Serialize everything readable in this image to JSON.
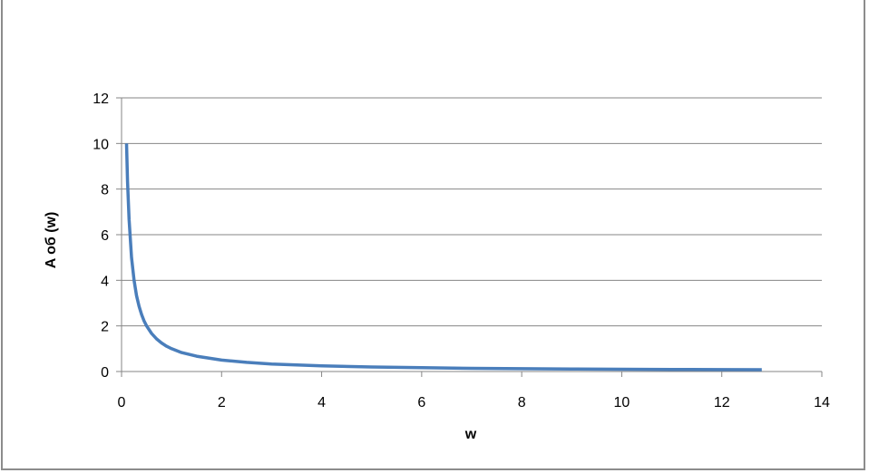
{
  "chart_data": {
    "type": "line",
    "title": "",
    "xlabel": "w",
    "ylabel": "A об (w)",
    "xlim": [
      0,
      14
    ],
    "ylim": [
      0,
      12
    ],
    "xticks": [
      "0",
      "2",
      "4",
      "6",
      "8",
      "10",
      "12",
      "14"
    ],
    "yticks": [
      "0",
      "2",
      "4",
      "6",
      "8",
      "10",
      "12"
    ],
    "grid": "horizontal",
    "legend": "none",
    "series": [
      {
        "color": "#4a7ebb",
        "x": [
          0.1,
          0.12,
          0.15,
          0.2,
          0.25,
          0.3,
          0.35,
          0.4,
          0.45,
          0.5,
          0.6,
          0.7,
          0.8,
          0.9,
          1,
          1.2,
          1.5,
          2,
          2.5,
          3,
          4,
          5,
          6,
          7,
          8,
          9,
          10,
          11,
          12,
          12.8
        ],
        "y": [
          10,
          8.33,
          6.67,
          5,
          4,
          3.33,
          2.86,
          2.5,
          2.22,
          2,
          1.67,
          1.43,
          1.25,
          1.11,
          1,
          0.83,
          0.67,
          0.5,
          0.4,
          0.33,
          0.25,
          0.2,
          0.17,
          0.14,
          0.125,
          0.11,
          0.1,
          0.09,
          0.083,
          0.078
        ]
      }
    ]
  }
}
